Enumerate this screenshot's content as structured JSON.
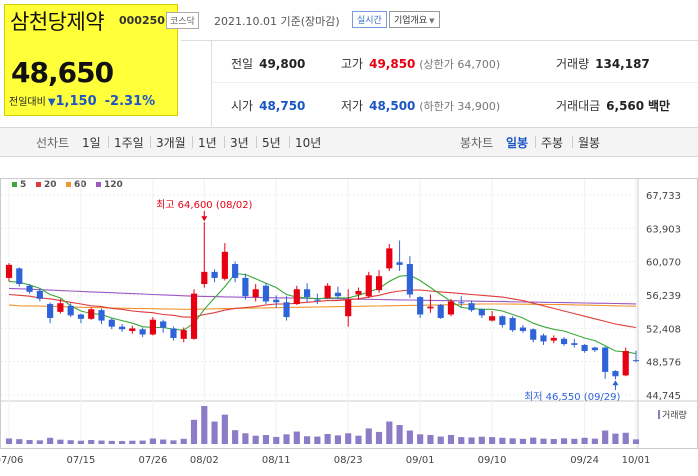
{
  "stock": {
    "name": "삼천당제약",
    "code": "000250",
    "market": "코스닥",
    "date": "2021.10.01 기준(장마감)",
    "realtime_label": "실시간",
    "company_label": "기업개요",
    "price": "48,650",
    "change_label": "전일대비",
    "change": "1,150",
    "change_pct": "-2.31%"
  },
  "quote": {
    "prev_label": "전일",
    "prev": "49,800",
    "high_label": "고가",
    "high": "49,850",
    "upper_limit": "(상한가 64,700)",
    "volume_label": "거래량",
    "volume": "134,187",
    "open_label": "시가",
    "open": "48,750",
    "low_label": "저가",
    "low": "48,500",
    "lower_limit": "(하한가 34,900)",
    "amount_label": "거래대금",
    "amount": "6,560",
    "amount_unit": "백만"
  },
  "period_tabs": {
    "line_label": "선차트",
    "items": [
      "1일",
      "1주일",
      "3개월",
      "1년",
      "3년",
      "5년",
      "10년"
    ],
    "candle_label": "봉차트",
    "candle_items": [
      "일봉",
      "주봉",
      "월봉"
    ],
    "candle_selected": "일봉"
  },
  "colors": {
    "up": "#e60012",
    "down": "#2f64d8",
    "ma5": "#3aa83a",
    "ma20": "#e03c3c",
    "ma60": "#f0962e",
    "ma120": "#9b59c4",
    "volume": "#8c7cc7",
    "highlight": "#ffff3a"
  },
  "chart_data": {
    "type": "candlestick",
    "ma_legend": [
      {
        "label": "5",
        "color": "#3aa83a"
      },
      {
        "label": "20",
        "color": "#e03c3c"
      },
      {
        "label": "60",
        "color": "#f0962e"
      },
      {
        "label": "120",
        "color": "#9b59c4"
      }
    ],
    "y_ticks": [
      "67,733",
      "63,903",
      "60,070",
      "56,239",
      "52,408",
      "48,576",
      "44,745"
    ],
    "ylim": [
      44745,
      67733
    ],
    "x_tick_labels": [
      "07/06",
      "07/15",
      "07/26",
      "08/02",
      "08/11",
      "08/23",
      "09/01",
      "09/10",
      "09/24",
      "10/01"
    ],
    "x_tick_index": [
      0,
      7,
      14,
      19,
      26,
      33,
      40,
      47,
      56,
      61
    ],
    "high_note": "최고 64,600 (08/02)",
    "high_index": 19,
    "high_value": 64600,
    "low_note": "최저 46,550 (09/29)",
    "low_index": 59,
    "low_value": 46550,
    "volume_label": "거래량",
    "ohlc": [
      [
        58200,
        59900,
        57800,
        59700
      ],
      [
        59300,
        59400,
        57200,
        57500
      ],
      [
        57300,
        57500,
        56400,
        56600
      ],
      [
        56700,
        57000,
        55500,
        55800
      ],
      [
        55200,
        55400,
        53000,
        53600
      ],
      [
        54300,
        55800,
        54100,
        55300
      ],
      [
        55000,
        55300,
        53700,
        53900
      ],
      [
        54000,
        54100,
        53000,
        53500
      ],
      [
        53500,
        54800,
        53400,
        54600
      ],
      [
        54500,
        54700,
        52900,
        53300
      ],
      [
        53400,
        53600,
        52300,
        52600
      ],
      [
        52600,
        52900,
        52000,
        52300
      ],
      [
        52100,
        52700,
        51800,
        52400
      ],
      [
        52300,
        52500,
        51400,
        51700
      ],
      [
        51700,
        53700,
        51600,
        53400
      ],
      [
        53200,
        53400,
        51900,
        52500
      ],
      [
        52400,
        52600,
        51000,
        51300
      ],
      [
        51200,
        52500,
        50800,
        52200
      ],
      [
        51200,
        56900,
        51100,
        56400
      ],
      [
        57500,
        64600,
        57100,
        58900
      ],
      [
        58900,
        59200,
        57700,
        58200
      ],
      [
        58100,
        62200,
        57900,
        61200
      ],
      [
        59800,
        60100,
        57700,
        58200
      ],
      [
        58200,
        58700,
        55700,
        56100
      ],
      [
        56000,
        57500,
        55500,
        56900
      ],
      [
        57300,
        57600,
        55200,
        55500
      ],
      [
        55700,
        56200,
        54800,
        55400
      ],
      [
        55400,
        56100,
        53300,
        53700
      ],
      [
        55200,
        57300,
        55100,
        56900
      ],
      [
        56900,
        57600,
        55400,
        56000
      ],
      [
        55700,
        56400,
        55200,
        55600
      ],
      [
        55900,
        57600,
        55800,
        57300
      ],
      [
        56500,
        57200,
        55800,
        56100
      ],
      [
        53800,
        56900,
        52600,
        55700
      ],
      [
        56300,
        57100,
        55700,
        56700
      ],
      [
        56100,
        58900,
        55900,
        58500
      ],
      [
        56800,
        59100,
        56500,
        58400
      ],
      [
        59300,
        62100,
        59000,
        61600
      ],
      [
        60000,
        62500,
        59000,
        59700
      ],
      [
        59800,
        60700,
        55900,
        56300
      ],
      [
        56000,
        56100,
        53600,
        54000
      ],
      [
        54700,
        56300,
        54200,
        54900
      ],
      [
        55100,
        55200,
        53500,
        53600
      ],
      [
        54000,
        55800,
        53800,
        55500
      ],
      [
        55400,
        56100,
        54900,
        55300
      ],
      [
        55300,
        55600,
        54300,
        54500
      ],
      [
        54600,
        54700,
        53600,
        53900
      ],
      [
        53300,
        54400,
        53200,
        53800
      ],
      [
        53800,
        53900,
        52500,
        52800
      ],
      [
        53600,
        53800,
        52000,
        52200
      ],
      [
        52500,
        52800,
        51900,
        52100
      ],
      [
        52300,
        52400,
        50800,
        51100
      ],
      [
        51600,
        51800,
        50500,
        50900
      ],
      [
        51000,
        51600,
        50700,
        51300
      ],
      [
        51200,
        51400,
        50400,
        50600
      ],
      [
        50700,
        51200,
        50200,
        50500
      ],
      [
        50500,
        50600,
        49600,
        49800
      ],
      [
        50200,
        50300,
        49700,
        49900
      ],
      [
        50200,
        50300,
        46600,
        47400
      ],
      [
        47500,
        47600,
        46550,
        46900
      ],
      [
        47000,
        50200,
        46900,
        49800
      ],
      [
        48750,
        49850,
        48500,
        48650
      ]
    ],
    "volume": [
      320,
      280,
      230,
      210,
      360,
      250,
      220,
      190,
      230,
      200,
      180,
      170,
      190,
      200,
      320,
      260,
      210,
      300,
      1400,
      2200,
      1300,
      1700,
      800,
      620,
      480,
      520,
      410,
      560,
      720,
      450,
      430,
      580,
      500,
      620,
      480,
      900,
      700,
      1300,
      1100,
      780,
      560,
      520,
      430,
      520,
      400,
      380,
      420,
      400,
      360,
      330,
      300,
      370,
      310,
      290,
      330,
      300,
      360,
      310,
      780,
      600,
      650,
      270
    ],
    "ma5": [
      57800,
      57700,
      57400,
      57000,
      56300,
      55900,
      55000,
      54400,
      54100,
      54000,
      53600,
      53300,
      53000,
      52600,
      52500,
      52500,
      52300,
      52200,
      53000,
      54600,
      55900,
      57200,
      58700,
      58600,
      58100,
      57600,
      57100,
      56300,
      56000,
      55900,
      55800,
      55900,
      55900,
      55900,
      56200,
      56600,
      57000,
      57800,
      58400,
      58500,
      57900,
      57100,
      56300,
      55500,
      54800,
      54700,
      54600,
      54600,
      54400,
      54000,
      53600,
      53000,
      52600,
      52300,
      52100,
      51700,
      51300,
      51000,
      50400,
      49800,
      49700,
      49500
    ],
    "ma20": [
      56300,
      56200,
      56100,
      55900,
      55800,
      55600,
      55400,
      55200,
      55000,
      54900,
      54700,
      54600,
      54400,
      54300,
      54200,
      54000,
      53900,
      53700,
      53700,
      54000,
      54200,
      54500,
      54700,
      54800,
      54900,
      55100,
      55200,
      55200,
      55300,
      55400,
      55500,
      55600,
      55600,
      55700,
      55800,
      56000,
      56200,
      56500,
      56700,
      56800,
      56800,
      56700,
      56600,
      56500,
      56400,
      56300,
      56200,
      56100,
      56000,
      55800,
      55600,
      55300,
      55000,
      54700,
      54400,
      54100,
      53800,
      53500,
      53200,
      52900,
      52700,
      52500
    ],
    "ma60": [
      55100,
      55000,
      54990,
      54960,
      54930,
      54900,
      54860,
      54820,
      54800,
      54780,
      54750,
      54720,
      54700,
      54680,
      54660,
      54640,
      54620,
      54600,
      54600,
      54620,
      54650,
      54680,
      54700,
      54720,
      54740,
      54760,
      54780,
      54800,
      54820,
      54840,
      54860,
      54880,
      54900,
      54920,
      54940,
      54960,
      54980,
      55000,
      55020,
      55040,
      55060,
      55080,
      55100,
      55120,
      55150,
      55180,
      55200,
      55200,
      55200,
      55190,
      55180,
      55170,
      55160,
      55150,
      55130,
      55100,
      55080,
      55060,
      55030,
      55000,
      54980,
      54950
    ],
    "ma120": [
      57000,
      56950,
      56900,
      56850,
      56800,
      56750,
      56700,
      56650,
      56600,
      56550,
      56500,
      56450,
      56400,
      56350,
      56300,
      56250,
      56200,
      56150,
      56100,
      56080,
      56050,
      56020,
      56000,
      55980,
      55960,
      55940,
      55920,
      55900,
      55880,
      55860,
      55840,
      55820,
      55800,
      55780,
      55760,
      55740,
      55720,
      55700,
      55680,
      55660,
      55640,
      55620,
      55600,
      55580,
      55560,
      55540,
      55520,
      55500,
      55480,
      55460,
      55440,
      55420,
      55400,
      55380,
      55360,
      55340,
      55320,
      55300,
      55280,
      55260,
      55240,
      55220
    ]
  }
}
